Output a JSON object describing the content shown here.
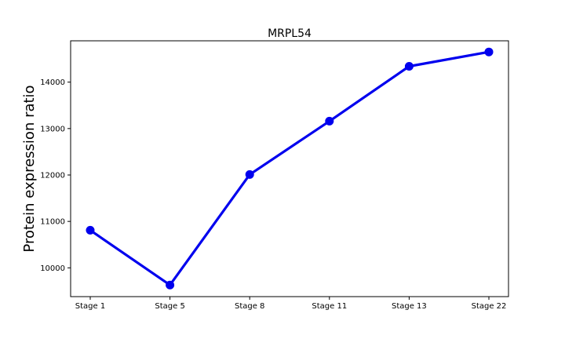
{
  "chart_data": {
    "type": "line",
    "title": "MRPL54",
    "xlabel": "",
    "ylabel": "Protein expression ratio",
    "categories": [
      "Stage 1",
      "Stage 5",
      "Stage 8",
      "Stage 11",
      "Stage 13",
      "Stage 22"
    ],
    "series": [
      {
        "values": [
          10810,
          9630,
          12010,
          13160,
          14340,
          14650
        ],
        "color": "#0000ee"
      }
    ],
    "ylim": [
      9380,
      14890
    ],
    "yticks": [
      10000,
      11000,
      12000,
      13000,
      14000
    ],
    "ytick_labels": [
      "10000",
      "11000",
      "12000",
      "13000",
      "14000"
    ],
    "grid": false,
    "legend": "none"
  }
}
